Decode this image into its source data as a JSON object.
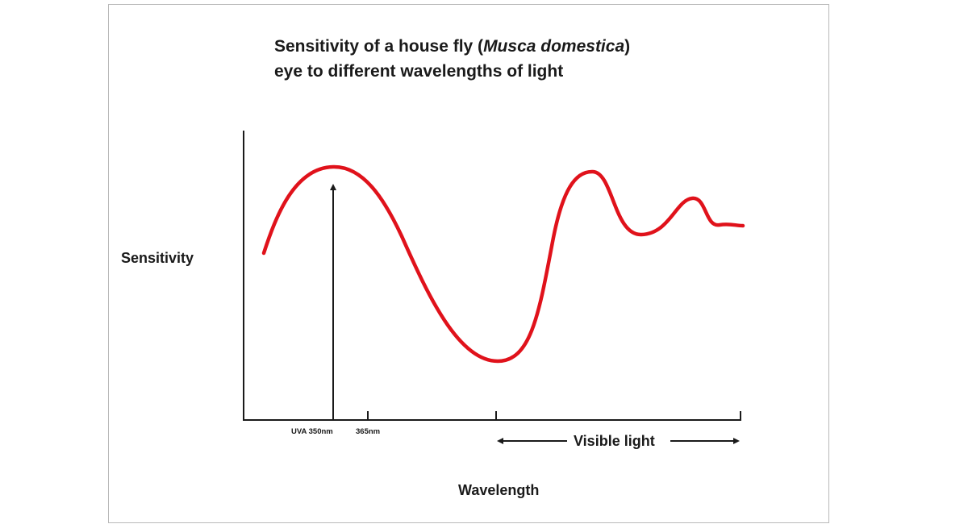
{
  "title_line1_prefix": "Sensitivity of a house fly (",
  "title_line1_italic": "Musca domestica",
  "title_line1_suffix": ")",
  "title_line2": "eye to different wavelengths of light",
  "chart_data": {
    "type": "line",
    "ylabel": "Sensitivity",
    "xlabel": "Wavelength",
    "tick_labels": [
      "UVA 350nm",
      "365nm"
    ],
    "visible_light_label": "Visible light",
    "curve_color": "#e0121b",
    "grid": false,
    "series": [
      {
        "values_note_units": "relative (0 = baseline, 1 = top of y-axis)",
        "points": [
          [
            0.04,
            0.58
          ],
          [
            0.1,
            0.78
          ],
          [
            0.15,
            0.84
          ],
          [
            0.2,
            0.8
          ],
          [
            0.26,
            0.6
          ],
          [
            0.33,
            0.32
          ],
          [
            0.38,
            0.17
          ],
          [
            0.42,
            0.14
          ],
          [
            0.46,
            0.22
          ],
          [
            0.51,
            0.6
          ],
          [
            0.55,
            0.82
          ],
          [
            0.58,
            0.8
          ],
          [
            0.61,
            0.65
          ],
          [
            0.66,
            0.64
          ],
          [
            0.72,
            0.74
          ],
          [
            0.76,
            0.68
          ],
          [
            0.8,
            0.67
          ],
          [
            1.0,
            0.67
          ]
        ]
      }
    ]
  }
}
